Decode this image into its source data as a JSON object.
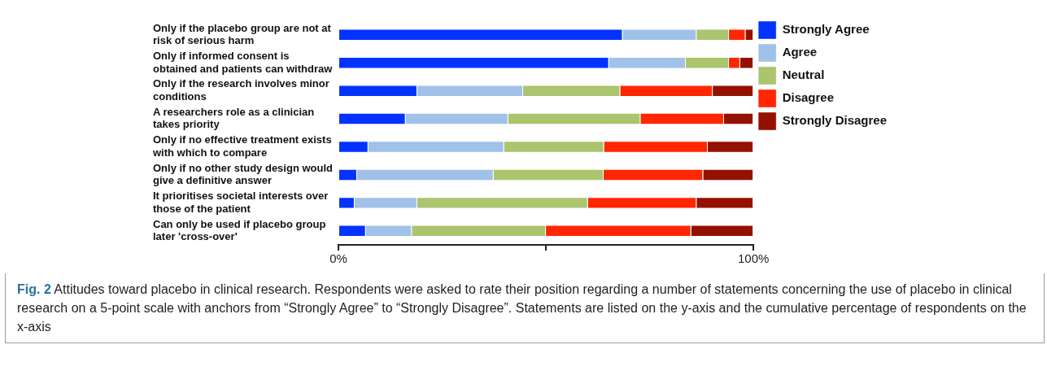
{
  "chart_data": {
    "type": "bar",
    "orientation": "horizontal",
    "stacked": true,
    "legend": "top right",
    "title": "Fig. 2",
    "annotations": [
      "Attitudes toward placebo in clinical research. Respondents were asked to rate their position regarding a number of statements concerning the use of placebo in clinical research on a 5-point scale with anchors from “Strongly Agree” to “Strongly Disagree”. Statements are listed on the y-axis and the cumulative percentage of respondents on the x-axis"
    ],
    "categories": [
      "Only if the placebo group are not at risk of serious harm",
      "Only if informed consent is obtained and patients can withdraw",
      "Only if the research involves minor conditions",
      "A researchers role as a clinician takes priority",
      "Only if no effective treatment exists with which to compare",
      "Only if no other study design would give a definitive answer",
      "It prioritises societal interests over those of the patient",
      "Can only be used if placebo group later 'cross-over'"
    ],
    "xlim": [
      0,
      100
    ],
    "xticks": [
      {
        "value": 0,
        "label": "0%"
      },
      {
        "value": 50,
        "label": null
      },
      {
        "value": 100,
        "label": "100%"
      }
    ],
    "series": [
      {
        "name": "Strongly Agree",
        "color": "#0432ff",
        "values": [
          68.5,
          65.2,
          19.0,
          16.2,
          7.2,
          4.5,
          3.9,
          6.6
        ]
      },
      {
        "name": "Agree",
        "color": "#a0c1e8",
        "values": [
          17.8,
          18.5,
          25.5,
          24.7,
          32.7,
          32.9,
          15.1,
          11.1
        ]
      },
      {
        "name": "Neutral",
        "color": "#abc46e",
        "values": [
          7.8,
          10.4,
          23.4,
          31.9,
          24.1,
          26.5,
          41.1,
          32.3
        ]
      },
      {
        "name": "Disagree",
        "color": "#ff2600",
        "values": [
          4.0,
          2.7,
          22.3,
          20.1,
          25.0,
          24.0,
          26.2,
          35.0
        ]
      },
      {
        "name": "Strongly Disagree",
        "color": "#941100",
        "values": [
          1.9,
          3.2,
          9.8,
          7.1,
          11.0,
          12.1,
          13.7,
          15.0
        ]
      }
    ]
  }
}
